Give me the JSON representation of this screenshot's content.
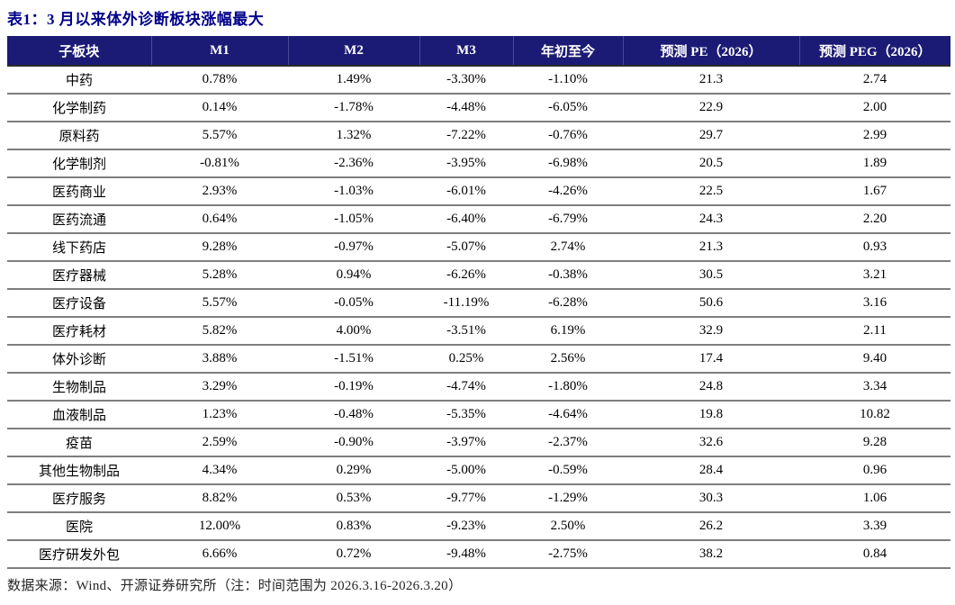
{
  "title": "表1：3 月以来体外诊断板块涨幅最大",
  "chart_data": {
    "type": "table",
    "columns": [
      "子板块",
      "M1",
      "M2",
      "M3",
      "年初至今",
      "预测 PE（2026）",
      "预测 PEG（2026）"
    ],
    "rows": [
      [
        "中药",
        "0.78%",
        "1.49%",
        "-3.30%",
        "-1.10%",
        "21.3",
        "2.74"
      ],
      [
        "化学制药",
        "0.14%",
        "-1.78%",
        "-4.48%",
        "-6.05%",
        "22.9",
        "2.00"
      ],
      [
        "原料药",
        "5.57%",
        "1.32%",
        "-7.22%",
        "-0.76%",
        "29.7",
        "2.99"
      ],
      [
        "化学制剂",
        "-0.81%",
        "-2.36%",
        "-3.95%",
        "-6.98%",
        "20.5",
        "1.89"
      ],
      [
        "医药商业",
        "2.93%",
        "-1.03%",
        "-6.01%",
        "-4.26%",
        "22.5",
        "1.67"
      ],
      [
        "医药流通",
        "0.64%",
        "-1.05%",
        "-6.40%",
        "-6.79%",
        "24.3",
        "2.20"
      ],
      [
        "线下药店",
        "9.28%",
        "-0.97%",
        "-5.07%",
        "2.74%",
        "21.3",
        "0.93"
      ],
      [
        "医疗器械",
        "5.28%",
        "0.94%",
        "-6.26%",
        "-0.38%",
        "30.5",
        "3.21"
      ],
      [
        "医疗设备",
        "5.57%",
        "-0.05%",
        "-11.19%",
        "-6.28%",
        "50.6",
        "3.16"
      ],
      [
        "医疗耗材",
        "5.82%",
        "4.00%",
        "-3.51%",
        "6.19%",
        "32.9",
        "2.11"
      ],
      [
        "体外诊断",
        "3.88%",
        "-1.51%",
        "0.25%",
        "2.56%",
        "17.4",
        "9.40"
      ],
      [
        "生物制品",
        "3.29%",
        "-0.19%",
        "-4.74%",
        "-1.80%",
        "24.8",
        "3.34"
      ],
      [
        "血液制品",
        "1.23%",
        "-0.48%",
        "-5.35%",
        "-4.64%",
        "19.8",
        "10.82"
      ],
      [
        "疫苗",
        "2.59%",
        "-0.90%",
        "-3.97%",
        "-2.37%",
        "32.6",
        "9.28"
      ],
      [
        "其他生物制品",
        "4.34%",
        "0.29%",
        "-5.00%",
        "-0.59%",
        "28.4",
        "0.96"
      ],
      [
        "医疗服务",
        "8.82%",
        "0.53%",
        "-9.77%",
        "-1.29%",
        "30.3",
        "1.06"
      ],
      [
        "医院",
        "12.00%",
        "0.83%",
        "-9.23%",
        "2.50%",
        "26.2",
        "3.39"
      ],
      [
        "医疗研发外包",
        "6.66%",
        "0.72%",
        "-9.48%",
        "-2.75%",
        "38.2",
        "0.84"
      ]
    ]
  },
  "footer": {
    "source_note": "数据来源：Wind、开源证券研究所（注：时间范围为 2026.3.16-2026.3.20）"
  },
  "colors": {
    "title": "#00008B",
    "header_bg": "#1B1B75",
    "header_text": "#ffffff",
    "row_divider": "#7e7e7e",
    "body_text": "#000000",
    "footer_text": "#262626"
  }
}
